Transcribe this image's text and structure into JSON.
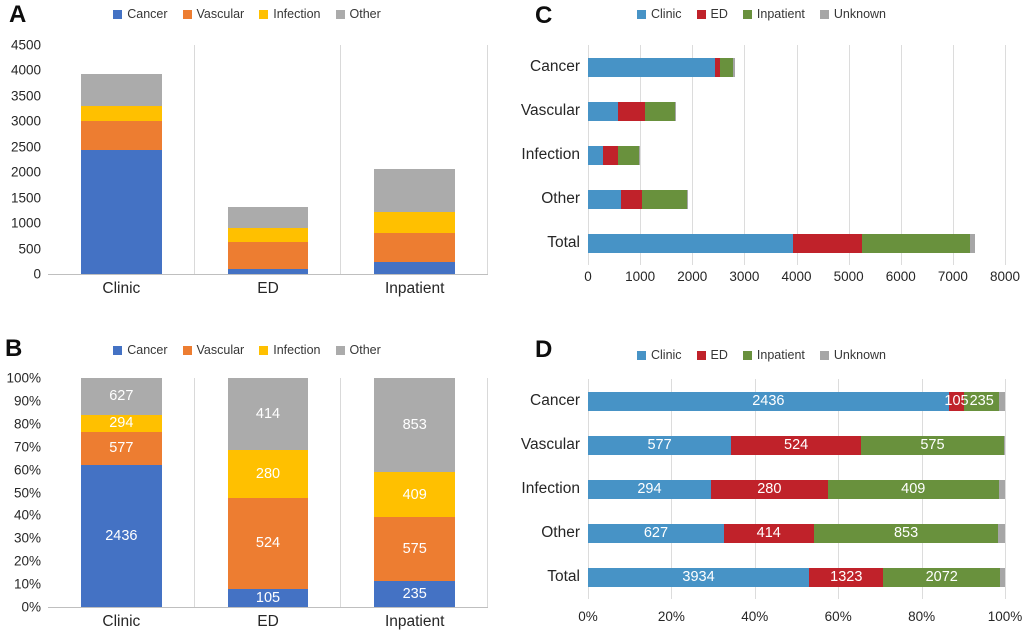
{
  "figure": {
    "panels": [
      {
        "letter": "A"
      },
      {
        "letter": "B"
      },
      {
        "letter": "C"
      },
      {
        "letter": "D"
      }
    ]
  },
  "chart_data": [
    {
      "panel": "A",
      "type": "bar",
      "orientation": "vertical",
      "stacked": true,
      "normalized": false,
      "legend_position": "top",
      "legend": [
        "Cancer",
        "Vascular",
        "Infection",
        "Other"
      ],
      "categories": [
        "Clinic",
        "ED",
        "Inpatient"
      ],
      "series": [
        {
          "name": "Cancer",
          "color": "#4472C4",
          "values": [
            2436,
            105,
            235
          ]
        },
        {
          "name": "Vascular",
          "color": "#ED7D31",
          "values": [
            577,
            524,
            575
          ]
        },
        {
          "name": "Infection",
          "color": "#FFC000",
          "values": [
            294,
            280,
            409
          ]
        },
        {
          "name": "Other",
          "color": "#ABABAB",
          "values": [
            627,
            414,
            853
          ]
        }
      ],
      "category_totals": [
        3934,
        1323,
        2072
      ],
      "value_axis": {
        "min": 0,
        "max": 4500,
        "tick_step": 500,
        "ticks": [
          "4500",
          "4000",
          "3500",
          "3000",
          "2500",
          "2000",
          "1500",
          "1000",
          "500",
          "0"
        ]
      },
      "data_labels": false,
      "grid": "vertical category separators"
    },
    {
      "panel": "B",
      "type": "bar",
      "orientation": "vertical",
      "stacked": true,
      "normalized": true,
      "legend_position": "top",
      "legend": [
        "Cancer",
        "Vascular",
        "Infection",
        "Other"
      ],
      "categories": [
        "Clinic",
        "ED",
        "Inpatient"
      ],
      "series": [
        {
          "name": "Cancer",
          "color": "#4472C4",
          "values": [
            2436,
            105,
            235
          ]
        },
        {
          "name": "Vascular",
          "color": "#ED7D31",
          "values": [
            577,
            524,
            575
          ]
        },
        {
          "name": "Infection",
          "color": "#FFC000",
          "values": [
            294,
            280,
            409
          ]
        },
        {
          "name": "Other",
          "color": "#ABABAB",
          "values": [
            627,
            414,
            853
          ]
        }
      ],
      "value_axis": {
        "min": 0,
        "max": 100,
        "tick_step": 10,
        "ticks": [
          "100%",
          "90%",
          "80%",
          "70%",
          "60%",
          "50%",
          "40%",
          "30%",
          "20%",
          "10%",
          "0%"
        ]
      },
      "data_labels": true,
      "grid": "vertical category separators"
    },
    {
      "panel": "C",
      "type": "bar",
      "orientation": "horizontal",
      "stacked": true,
      "normalized": false,
      "legend_position": "top",
      "legend": [
        "Clinic",
        "ED",
        "Inpatient",
        "Unknown"
      ],
      "categories": [
        "Cancer",
        "Vascular",
        "Infection",
        "Other",
        "Total"
      ],
      "series": [
        {
          "name": "Clinic",
          "color": "#4793C6",
          "values": [
            2436,
            577,
            294,
            627,
            3934
          ]
        },
        {
          "name": "ED",
          "color": "#C0222A",
          "values": [
            105,
            524,
            280,
            414,
            1323
          ]
        },
        {
          "name": "Inpatient",
          "color": "#69913D",
          "values": [
            235,
            575,
            409,
            853,
            2072
          ]
        },
        {
          "name": "Unknown",
          "color": "#A6A6A6",
          "values": [
            40,
            5,
            15,
            30,
            90
          ],
          "estimated": true,
          "note": "Unknown segments carry no labels in the figure; values estimated from bar lengths"
        }
      ],
      "value_axis": {
        "min": 0,
        "max": 8000,
        "tick_step": 1000,
        "ticks": [
          "0",
          "1000",
          "2000",
          "3000",
          "4000",
          "5000",
          "6000",
          "7000",
          "8000"
        ]
      },
      "data_labels": false,
      "grid": "vertical gridlines"
    },
    {
      "panel": "D",
      "type": "bar",
      "orientation": "horizontal",
      "stacked": true,
      "normalized": true,
      "legend_position": "top",
      "legend": [
        "Clinic",
        "ED",
        "Inpatient",
        "Unknown"
      ],
      "categories": [
        "Cancer",
        "Vascular",
        "Infection",
        "Other",
        "Total"
      ],
      "series": [
        {
          "name": "Clinic",
          "color": "#4793C6",
          "values": [
            2436,
            577,
            294,
            627,
            3934
          ]
        },
        {
          "name": "ED",
          "color": "#C0222A",
          "values": [
            105,
            524,
            280,
            414,
            1323
          ]
        },
        {
          "name": "Inpatient",
          "color": "#69913D",
          "values": [
            235,
            575,
            409,
            853,
            2072
          ]
        },
        {
          "name": "Unknown",
          "color": "#A6A6A6",
          "values": [
            40,
            5,
            15,
            30,
            90
          ],
          "estimated": true,
          "show_labels": false,
          "note": "Unknown segments carry no labels in the figure; values estimated from bar lengths"
        }
      ],
      "value_axis": {
        "min": 0,
        "max": 100,
        "tick_step": 20,
        "ticks": [
          "0%",
          "20%",
          "40%",
          "60%",
          "80%",
          "100%"
        ]
      },
      "data_labels": true,
      "grid": "vertical gridlines"
    }
  ]
}
